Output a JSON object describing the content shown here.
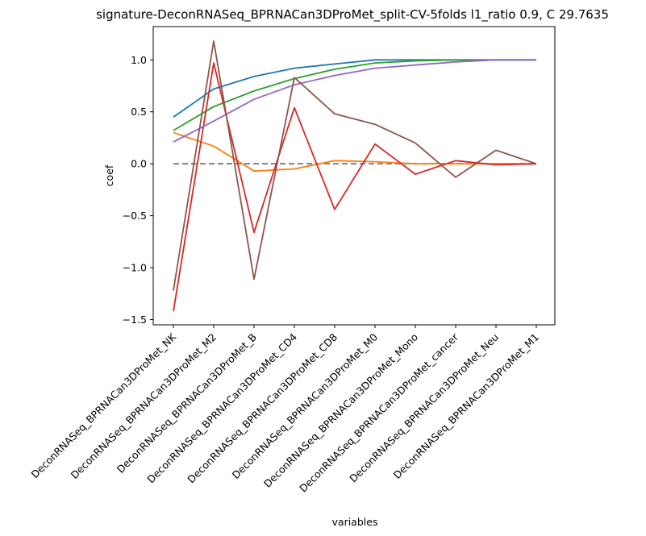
{
  "chart_data": {
    "type": "line",
    "title": "signature-DeconRNASeq_BPRNACan3DProMet_split-CV-5folds l1_ratio 0.9, C 29.7635",
    "xlabel": "variables",
    "ylabel": "coef",
    "ylim": [
      -1.55,
      1.32
    ],
    "yticks": [
      -1.5,
      -1.0,
      -0.5,
      0.0,
      0.5,
      1.0
    ],
    "ytick_labels": [
      "−1.5",
      "−1.0",
      "−0.5",
      "0.0",
      "0.5",
      "1.0"
    ],
    "categories": [
      "DeconRNASeq_BPRNACan3DProMet_NK",
      "DeconRNASeq_BPRNACan3DProMet_M2",
      "DeconRNASeq_BPRNACan3DProMet_B",
      "DeconRNASeq_BPRNACan3DProMet_CD4",
      "DeconRNASeq_BPRNACan3DProMet_CD8",
      "DeconRNASeq_BPRNACan3DProMet_M0",
      "DeconRNASeq_BPRNACan3DProMet_Mono",
      "DeconRNASeq_BPRNACan3DProMet_cancer",
      "DeconRNASeq_BPRNACan3DProMet_Neu",
      "DeconRNASeq_BPRNACan3DProMet_M1"
    ],
    "baseline": {
      "value": 0.0,
      "color": "#808080",
      "style": "dashed"
    },
    "series": [
      {
        "name": "series-blue",
        "color": "#1f77b4",
        "values": [
          0.45,
          0.72,
          0.84,
          0.92,
          0.96,
          1.0,
          1.0,
          1.0,
          1.0,
          1.0
        ]
      },
      {
        "name": "series-orange",
        "color": "#ff7f0e",
        "values": [
          0.3,
          0.17,
          -0.07,
          -0.05,
          0.03,
          0.02,
          0.0,
          0.0,
          0.0,
          0.0
        ]
      },
      {
        "name": "series-green",
        "color": "#2ca02c",
        "values": [
          0.32,
          0.55,
          0.7,
          0.82,
          0.91,
          0.97,
          0.99,
          1.0,
          1.0,
          1.0
        ]
      },
      {
        "name": "series-red",
        "color": "#d62728",
        "values": [
          -1.42,
          0.97,
          -0.66,
          0.54,
          -0.44,
          0.19,
          -0.1,
          0.03,
          -0.01,
          0.0
        ]
      },
      {
        "name": "series-purple",
        "color": "#9467bd",
        "values": [
          0.21,
          0.41,
          0.62,
          0.76,
          0.85,
          0.92,
          0.95,
          0.98,
          1.0,
          1.0
        ]
      },
      {
        "name": "series-brown",
        "color": "#8c564b",
        "values": [
          -1.22,
          1.18,
          -1.11,
          0.83,
          0.48,
          0.38,
          0.2,
          -0.13,
          0.13,
          0.0
        ]
      }
    ]
  }
}
